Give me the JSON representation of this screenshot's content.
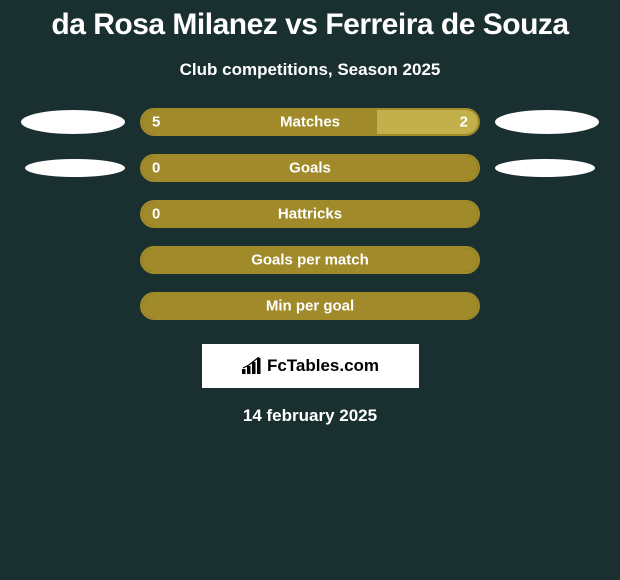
{
  "title": "da Rosa Milanez vs Ferreira de Souza",
  "subtitle": "Club competitions, Season 2025",
  "date": "14 february 2025",
  "logo_text": "FcTables.com",
  "background_color": "#1a2f2f",
  "stats": [
    {
      "label": "Matches",
      "left_value": "5",
      "right_value": "2",
      "left_pct": 70,
      "right_pct": 30,
      "left_fill": "#a08a2a",
      "right_fill": "#c2b04a",
      "border_color": "#a08a2a",
      "oval_left_w": 104,
      "oval_left_h": 24,
      "oval_right_w": 104,
      "oval_right_h": 24,
      "show_left_value": true,
      "show_right_value": true
    },
    {
      "label": "Goals",
      "left_value": "0",
      "right_value": "",
      "left_pct": 100,
      "right_pct": 0,
      "left_fill": "#a08a2a",
      "right_fill": "#c2b04a",
      "border_color": "#a08a2a",
      "oval_left_w": 100,
      "oval_left_h": 18,
      "oval_right_w": 100,
      "oval_right_h": 18,
      "oval_left_offset": 20,
      "oval_right_offset": 20,
      "show_left_value": true,
      "show_right_value": false
    },
    {
      "label": "Hattricks",
      "left_value": "0",
      "right_value": "",
      "left_pct": 100,
      "right_pct": 0,
      "left_fill": "#a08a2a",
      "right_fill": "#c2b04a",
      "border_color": "#a08a2a",
      "oval_left_w": 0,
      "oval_left_h": 0,
      "oval_right_w": 0,
      "oval_right_h": 0,
      "show_left_value": true,
      "show_right_value": false
    },
    {
      "label": "Goals per match",
      "left_value": "",
      "right_value": "",
      "left_pct": 100,
      "right_pct": 0,
      "left_fill": "#a08a2a",
      "right_fill": "#c2b04a",
      "border_color": "#a08a2a",
      "oval_left_w": 0,
      "oval_left_h": 0,
      "oval_right_w": 0,
      "oval_right_h": 0,
      "show_left_value": false,
      "show_right_value": false
    },
    {
      "label": "Min per goal",
      "left_value": "",
      "right_value": "",
      "left_pct": 100,
      "right_pct": 0,
      "left_fill": "#a08a2a",
      "right_fill": "#c2b04a",
      "border_color": "#a08a2a",
      "oval_left_w": 0,
      "oval_left_h": 0,
      "oval_right_w": 0,
      "oval_right_h": 0,
      "show_left_value": false,
      "show_right_value": false
    }
  ]
}
